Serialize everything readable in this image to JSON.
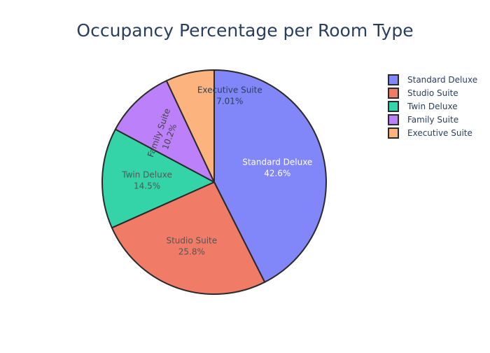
{
  "chart_data": {
    "type": "pie",
    "title": "Occupancy Percentage per Room Type",
    "labels": [
      "Standard Deluxe",
      "Studio Suite",
      "Twin Deluxe",
      "Family Suite",
      "Executive Suite"
    ],
    "values": [
      42.6,
      25.8,
      14.5,
      10.2,
      7.01
    ],
    "value_labels": [
      "42.6%",
      "25.8%",
      "14.5%",
      "10.2%",
      "7.01%"
    ],
    "colors": [
      "#8187f8",
      "#f07c68",
      "#35d4a8",
      "#bc80fa",
      "#fdb37d"
    ],
    "slice_outline_color": "#2a2a2a",
    "direction": "clockwise",
    "start": "top",
    "legend": {
      "position": "top-right",
      "items": [
        "Standard Deluxe",
        "Studio Suite",
        "Twin Deluxe",
        "Family Suite",
        "Executive Suite"
      ]
    }
  }
}
